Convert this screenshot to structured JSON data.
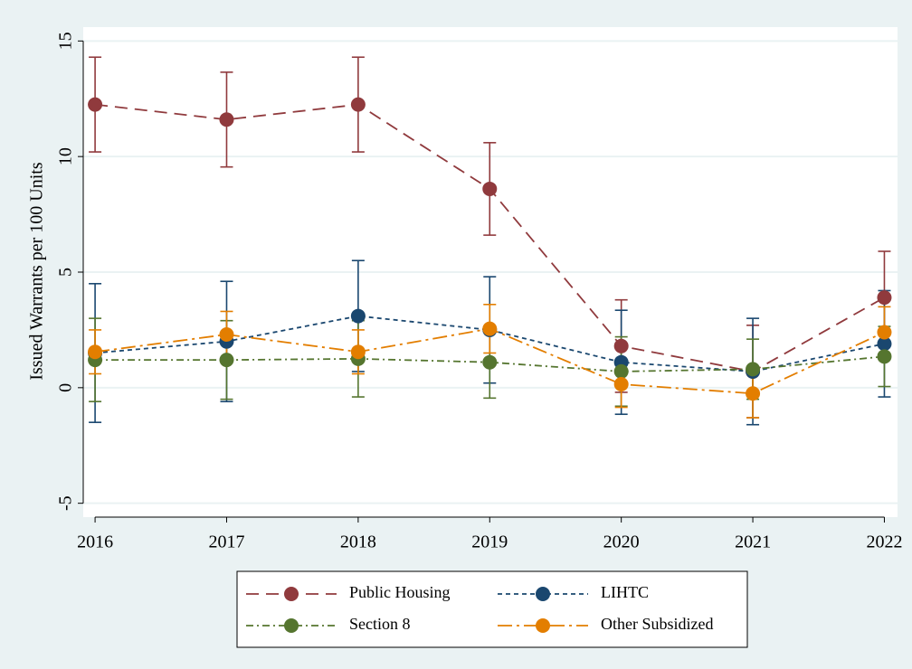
{
  "chart_data": {
    "type": "line",
    "y_label": "Issued Warrants per 100 Units",
    "x": [
      2016,
      2017,
      2018,
      2019,
      2020,
      2021,
      2022
    ],
    "xlim": [
      2015.91,
      2022.1
    ],
    "xticks": [
      2016,
      2017,
      2018,
      2019,
      2020,
      2021,
      2022
    ],
    "ylim": [
      -5.6,
      15.6
    ],
    "yticks": [
      -5,
      0,
      5,
      10,
      15
    ],
    "grid": true,
    "legend": "bottom",
    "series": [
      {
        "name": "Public Housing",
        "color": "#903a3d",
        "style": "longdash",
        "values": [
          12.25,
          11.6,
          12.25,
          8.6,
          1.8,
          0.7,
          3.9
        ],
        "errors": [
          2.05,
          2.05,
          2.05,
          2.0,
          2.0,
          2.0,
          2.0
        ]
      },
      {
        "name": "LIHTC",
        "color": "#1a476f",
        "style": "shortdash",
        "values": [
          1.5,
          2.0,
          3.1,
          2.5,
          1.1,
          0.7,
          1.9
        ],
        "errors": [
          3.0,
          2.6,
          2.4,
          2.3,
          2.25,
          2.3,
          2.3
        ]
      },
      {
        "name": "Section 8",
        "color": "#55752f",
        "style": "dashdot",
        "values": [
          1.2,
          1.2,
          1.25,
          1.1,
          0.7,
          0.8,
          1.35
        ],
        "errors": [
          1.8,
          1.7,
          1.65,
          1.55,
          1.5,
          1.3,
          1.3
        ]
      },
      {
        "name": "Other Subsidized",
        "color": "#e37e00",
        "style": "longdashdot",
        "values": [
          1.55,
          2.3,
          1.55,
          2.55,
          0.15,
          -0.25,
          2.4
        ],
        "errors": [
          0.95,
          1.0,
          0.95,
          1.05,
          1.0,
          1.05,
          1.1
        ]
      }
    ]
  }
}
